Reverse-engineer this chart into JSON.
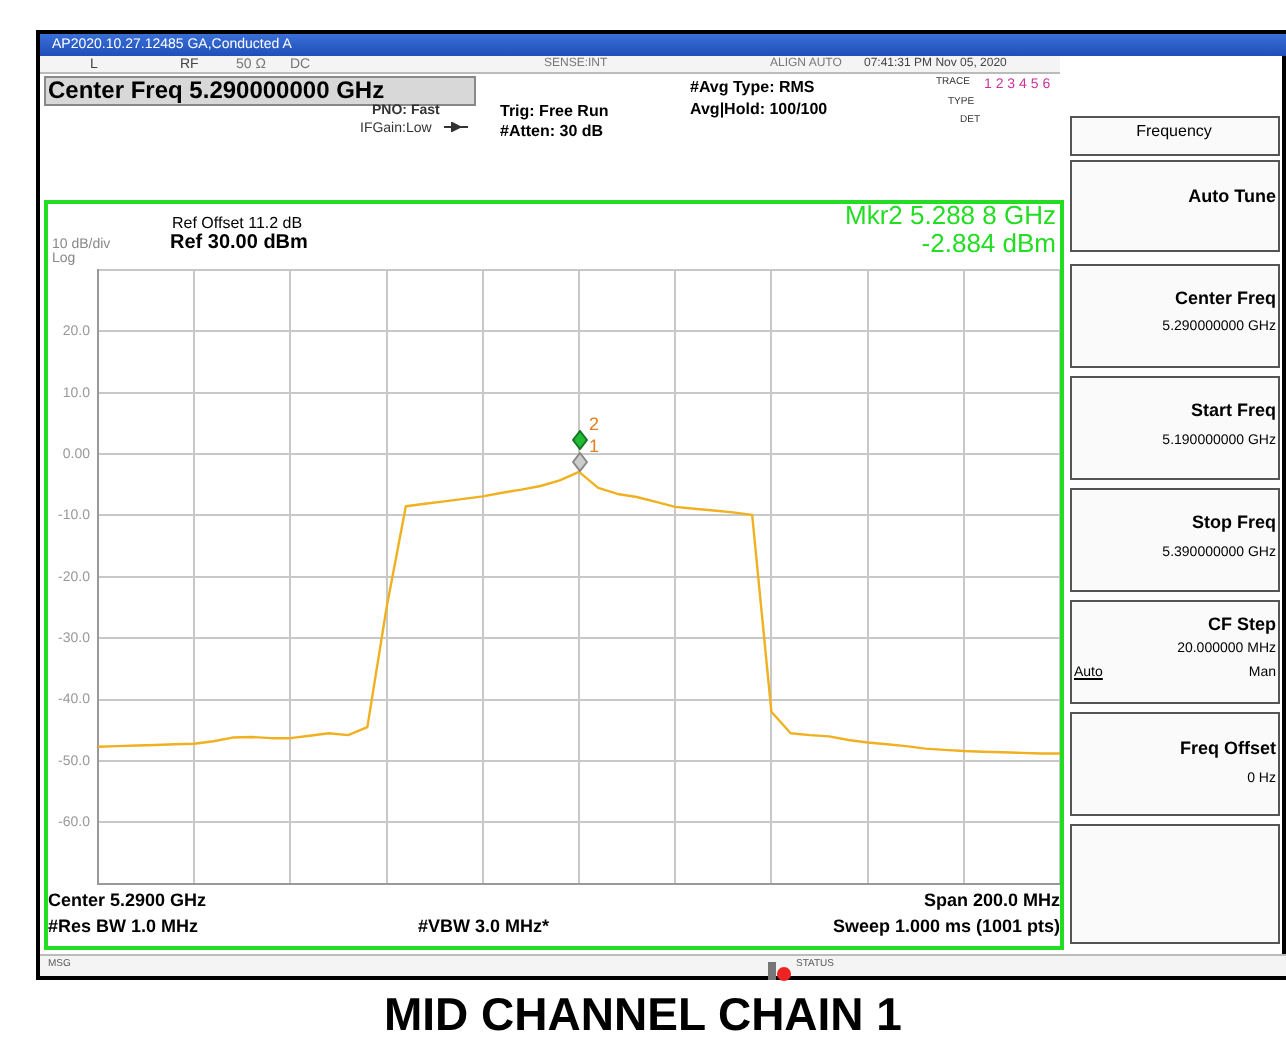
{
  "chart_data": {
    "type": "line",
    "title": "MID CHANNEL CHAIN 1",
    "categories": [
      null,
      null,
      null,
      null,
      null,
      null,
      null,
      null,
      null,
      null,
      null,
      null,
      null,
      null,
      null,
      null,
      null,
      null,
      null,
      null,
      null,
      null,
      null,
      null,
      null,
      null,
      null,
      null,
      null,
      null,
      null,
      null,
      null,
      null,
      null,
      null,
      null,
      null,
      null,
      null,
      null,
      null,
      null,
      null,
      null,
      null,
      null,
      null,
      null,
      null,
      null
    ],
    "series": [
      {
        "color": "#f0b020",
        "values": [
          -47.7,
          -47.6,
          -47.5,
          -47.4,
          -47.3,
          -47.2,
          -46.8,
          -46.2,
          -46.1,
          -46.3,
          -46.3,
          -45.9,
          -45.5,
          -45.8,
          -44.5,
          -25,
          -8.5,
          -8.1,
          -7.7,
          -7.3,
          -6.9,
          -6.3,
          -5.8,
          -5.2,
          -4.3,
          -2.9,
          -5.5,
          -6.5,
          -7,
          -7.8,
          -8.6,
          -8.9,
          -9.2,
          -9.5,
          -9.9,
          -42,
          -45.5,
          -45.8,
          -46,
          -46.6,
          -47,
          -47.3,
          -47.6,
          -48,
          -48.2,
          -48.4,
          -48.5,
          -48.6,
          -48.7,
          -48.8,
          -48.8
        ]
      }
    ],
    "ylim": [
      -70,
      30
    ],
    "yticks": [
      {
        "value": 30,
        "label": null
      },
      {
        "value": 20,
        "label": "20.0"
      },
      {
        "value": 10,
        "label": "10.0"
      },
      {
        "value": 0,
        "label": "0.00"
      },
      {
        "value": -10,
        "label": "-10.0"
      },
      {
        "value": -20,
        "label": "-20.0"
      },
      {
        "value": -30,
        "label": "-30.0"
      },
      {
        "value": -40,
        "label": "-40.0"
      },
      {
        "value": -50,
        "label": "-50.0"
      },
      {
        "value": -60,
        "label": "-60.0"
      },
      {
        "value": -70,
        "label": null
      }
    ],
    "tick_labels": "y",
    "grid": true,
    "legend": false,
    "marker": "none",
    "line_style": "solid",
    "annotations": [
      "AP2020.10.27.12485 GA,Conducted A",
      "L",
      "RF",
      "50 Ω",
      "DC",
      "SENSE:INT",
      "ALIGN AUTO",
      "07:41:31 PM Nov 05, 2020",
      "Center Freq 5.290000000 GHz",
      "PNO: Fast",
      "IFGain:Low",
      "Trig: Free Run",
      "#Atten: 30 dB",
      "#Avg Type: RMS",
      "Avg|Hold: 100/100",
      "TRACE",
      "1 2 3 4 5 6",
      "TYPE",
      "DET",
      "Ref Offset 11.2 dB",
      "10 dB/div",
      "Log",
      "Ref 30.00 dBm",
      "Mkr2 5.288 8 GHz",
      "-2.884 dBm",
      "Center 5.2900 GHz",
      "#Res BW 1.0 MHz",
      "#VBW 3.0 MHz*",
      "Span 200.0 MHz",
      "Sweep  1.000 ms (1001 pts)",
      "MSG",
      "STATUS",
      "Frequency",
      "Auto Tune",
      "Center Freq",
      "5.290000000 GHz",
      "Start Freq",
      "5.190000000 GHz",
      "Stop Freq",
      "5.390000000 GHz",
      "CF Step",
      "20.000000 MHz",
      "Auto",
      "Man",
      "Freq Offset",
      "0 Hz",
      {
        "text": "2",
        "y": -2.884
      },
      {
        "text": "1",
        "y": -4.5
      }
    ]
  }
}
